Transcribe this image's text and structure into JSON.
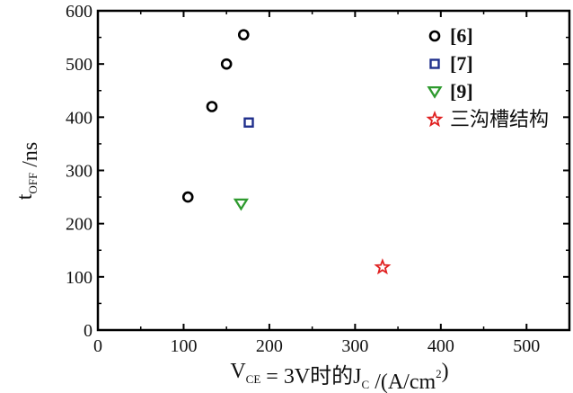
{
  "chart_data": {
    "type": "scatter",
    "title": "",
    "xlim": [
      0,
      550
    ],
    "ylim": [
      0,
      600
    ],
    "xticks": [
      0,
      100,
      200,
      300,
      400,
      500
    ],
    "yticks": [
      0,
      100,
      200,
      300,
      400,
      500,
      600
    ],
    "xtick_labels": [
      "0",
      "100",
      "200",
      "300",
      "400",
      "500"
    ],
    "ytick_labels": [
      "0",
      "100",
      "200",
      "300",
      "400",
      "500",
      "600"
    ],
    "xlabel": {
      "parts": [
        {
          "text": "V",
          "style": "normal"
        },
        {
          "text": "CE",
          "style": "sub"
        },
        {
          "text": " = 3V时的J",
          "style": "normal"
        },
        {
          "text": "C",
          "style": "sub"
        },
        {
          "text": " /(A/cm",
          "style": "normal"
        },
        {
          "text": "2",
          "style": "sup"
        },
        {
          "text": ")",
          "style": "normal"
        }
      ]
    },
    "ylabel": {
      "parts": [
        {
          "text": "t",
          "style": "normal"
        },
        {
          "text": "OFF",
          "style": "sub"
        },
        {
          "text": " /ns",
          "style": "normal"
        }
      ]
    },
    "legend_position": "top-right",
    "grid": false,
    "series": [
      {
        "name": "[6]",
        "marker": "circle",
        "color": "#000000",
        "bold": true,
        "points": [
          {
            "x": 105,
            "y": 250
          },
          {
            "x": 133,
            "y": 420
          },
          {
            "x": 150,
            "y": 500
          },
          {
            "x": 170,
            "y": 555
          }
        ]
      },
      {
        "name": "[7]",
        "marker": "square",
        "color": "#1f2f8c",
        "bold": true,
        "points": [
          {
            "x": 176,
            "y": 390
          }
        ]
      },
      {
        "name": "[9]",
        "marker": "triangle-down",
        "color": "#2e9a2e",
        "bold": true,
        "points": [
          {
            "x": 167,
            "y": 237
          }
        ]
      },
      {
        "name": "三沟槽结构",
        "marker": "star",
        "color": "#e02020",
        "bold": false,
        "points": [
          {
            "x": 332,
            "y": 118
          }
        ]
      }
    ]
  }
}
